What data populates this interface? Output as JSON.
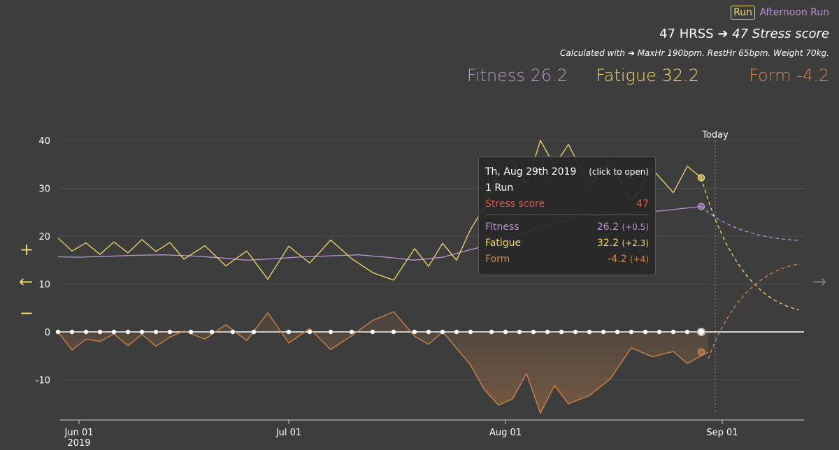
{
  "header": {
    "activity_type": "Run",
    "activity_name": "Afternoon Run",
    "hrss_text": "47 HRSS",
    "arrow": "➔",
    "stress_text": "47 Stress score",
    "calc_prefix": "Calculated with",
    "calc_details": "MaxHr 190bpm. RestHr 65bpm. Weight 70kg.",
    "fitness_label": "Fitness 26.2",
    "fatigue_label": "Fatigue 32.2",
    "form_label": "Form -4.2"
  },
  "controls": {
    "zoom_in": "+",
    "zoom_out": "−",
    "prev": "←",
    "next": "→"
  },
  "tooltip": {
    "date": "Th, Aug 29th 2019",
    "click_hint": "(click to open)",
    "activities": "1 Run",
    "stress_label": "Stress score",
    "stress_value": "47",
    "fitness_label": "Fitness",
    "fitness_value": "26.2",
    "fitness_delta": "(+0.5)",
    "fatigue_label": "Fatigue",
    "fatigue_value": "32.2",
    "fatigue_delta": "(+2.3)",
    "form_label": "Form",
    "form_value": "-4.2",
    "form_delta": "(+4)"
  },
  "colors": {
    "fitness": "#b896cf",
    "fatigue": "#efd96e",
    "form": "#d2884a",
    "stress": "#d9584a",
    "background": "#3d3d3d"
  },
  "chart_data": {
    "type": "line",
    "ylim": [
      -18,
      42
    ],
    "yticks": [
      -10,
      0,
      10,
      20,
      30,
      40
    ],
    "x_start": "2019-05-28",
    "x_end": "2019-09-12",
    "xticks": [
      {
        "date": "2019-06-01",
        "label": "Jun 01",
        "sublabel": "2019"
      },
      {
        "date": "2019-07-01",
        "label": "Jul 01",
        "sublabel": ""
      },
      {
        "date": "2019-08-01",
        "label": "Aug 01",
        "sublabel": ""
      },
      {
        "date": "2019-09-01",
        "label": "Sep 01",
        "sublabel": ""
      }
    ],
    "today": {
      "date": "2019-08-31",
      "label": "Today"
    },
    "selected_date": "2019-08-29",
    "grid": true,
    "series": [
      {
        "name": "Fitness",
        "color": "#b896cf",
        "dates": [
          "2019-05-29",
          "2019-06-01",
          "2019-06-05",
          "2019-06-09",
          "2019-06-13",
          "2019-06-17",
          "2019-06-21",
          "2019-06-25",
          "2019-06-29",
          "2019-07-03",
          "2019-07-07",
          "2019-07-11",
          "2019-07-15",
          "2019-07-19",
          "2019-07-23",
          "2019-07-27",
          "2019-07-31",
          "2019-08-04",
          "2019-08-08",
          "2019-08-12",
          "2019-08-16",
          "2019-08-20",
          "2019-08-24",
          "2019-08-27",
          "2019-08-29"
        ],
        "values": [
          15.7,
          15.6,
          15.8,
          16.0,
          16.1,
          15.9,
          15.5,
          15.0,
          15.3,
          15.7,
          15.9,
          16.1,
          15.6,
          15.0,
          15.6,
          17.2,
          18.6,
          20.8,
          22.8,
          24.0,
          24.6,
          24.9,
          25.4,
          25.9,
          26.2
        ]
      },
      {
        "name": "Fatigue",
        "color": "#efd96e",
        "dates": [
          "2019-05-29",
          "2019-05-31",
          "2019-06-02",
          "2019-06-04",
          "2019-06-06",
          "2019-06-08",
          "2019-06-10",
          "2019-06-12",
          "2019-06-14",
          "2019-06-16",
          "2019-06-19",
          "2019-06-22",
          "2019-06-25",
          "2019-06-28",
          "2019-07-01",
          "2019-07-04",
          "2019-07-07",
          "2019-07-10",
          "2019-07-13",
          "2019-07-16",
          "2019-07-19",
          "2019-07-21",
          "2019-07-23",
          "2019-07-25",
          "2019-07-27",
          "2019-07-29",
          "2019-07-31",
          "2019-08-02",
          "2019-08-04",
          "2019-08-06",
          "2019-08-08",
          "2019-08-10",
          "2019-08-13",
          "2019-08-16",
          "2019-08-19",
          "2019-08-22",
          "2019-08-25",
          "2019-08-27",
          "2019-08-29"
        ],
        "values": [
          19.6,
          16.9,
          18.6,
          16.2,
          18.8,
          16.5,
          19.3,
          16.8,
          18.7,
          15.2,
          18.0,
          13.8,
          16.9,
          11.0,
          17.9,
          14.4,
          19.2,
          15.3,
          12.4,
          10.8,
          17.4,
          13.7,
          18.5,
          15.0,
          21.4,
          26.1,
          33.5,
          36.0,
          30.7,
          40.0,
          34.7,
          39.2,
          30.5,
          35.6,
          27.2,
          34.0,
          29.1,
          34.6,
          32.2
        ]
      },
      {
        "name": "Form",
        "color": "#d2884a",
        "dates": [
          "2019-05-29",
          "2019-05-31",
          "2019-06-02",
          "2019-06-04",
          "2019-06-06",
          "2019-06-08",
          "2019-06-10",
          "2019-06-12",
          "2019-06-14",
          "2019-06-16",
          "2019-06-19",
          "2019-06-22",
          "2019-06-25",
          "2019-06-28",
          "2019-07-01",
          "2019-07-04",
          "2019-07-07",
          "2019-07-10",
          "2019-07-13",
          "2019-07-16",
          "2019-07-19",
          "2019-07-21",
          "2019-07-23",
          "2019-07-25",
          "2019-07-27",
          "2019-07-29",
          "2019-07-31",
          "2019-08-02",
          "2019-08-04",
          "2019-08-06",
          "2019-08-08",
          "2019-08-10",
          "2019-08-13",
          "2019-08-16",
          "2019-08-19",
          "2019-08-22",
          "2019-08-25",
          "2019-08-27",
          "2019-08-30"
        ],
        "values": [
          0,
          -3.8,
          -1.5,
          -2.0,
          -0.4,
          -2.9,
          -0.5,
          -3.0,
          -1.1,
          0.2,
          -1.5,
          1.5,
          -1.8,
          4.0,
          -2.3,
          0.7,
          -3.7,
          -0.8,
          2.4,
          4.2,
          -0.9,
          -2.6,
          0,
          -3.4,
          -6.9,
          -12.1,
          -15.3,
          -14.0,
          -8.7,
          -17.0,
          -11.2,
          -15.0,
          -13.3,
          -9.8,
          -3.3,
          -5.2,
          -4.1,
          -6.6,
          -4.2
        ]
      }
    ],
    "projections": [
      {
        "name": "Fitness",
        "dates": [
          "2019-08-29",
          "2019-09-12"
        ],
        "values": [
          26.2,
          19.1
        ]
      },
      {
        "name": "Fatigue",
        "dates": [
          "2019-08-29",
          "2019-09-12"
        ],
        "values": [
          32.2,
          4.6
        ]
      },
      {
        "name": "Form",
        "dates": [
          "2019-08-30",
          "2019-09-12"
        ],
        "values": [
          -5.6,
          14.2
        ]
      }
    ],
    "activity_dates": [
      "2019-05-29",
      "2019-05-31",
      "2019-06-02",
      "2019-06-04",
      "2019-06-06",
      "2019-06-08",
      "2019-06-10",
      "2019-06-12",
      "2019-06-14",
      "2019-06-17",
      "2019-06-20",
      "2019-06-23",
      "2019-06-26",
      "2019-07-01",
      "2019-07-04",
      "2019-07-07",
      "2019-07-10",
      "2019-07-13",
      "2019-07-16",
      "2019-07-19",
      "2019-07-21",
      "2019-07-23",
      "2019-07-25",
      "2019-07-27",
      "2019-07-30",
      "2019-08-01",
      "2019-08-03",
      "2019-08-05",
      "2019-08-07",
      "2019-08-09",
      "2019-08-11",
      "2019-08-13",
      "2019-08-15",
      "2019-08-17",
      "2019-08-19",
      "2019-08-21",
      "2019-08-23",
      "2019-08-25",
      "2019-08-27",
      "2019-08-29"
    ]
  }
}
